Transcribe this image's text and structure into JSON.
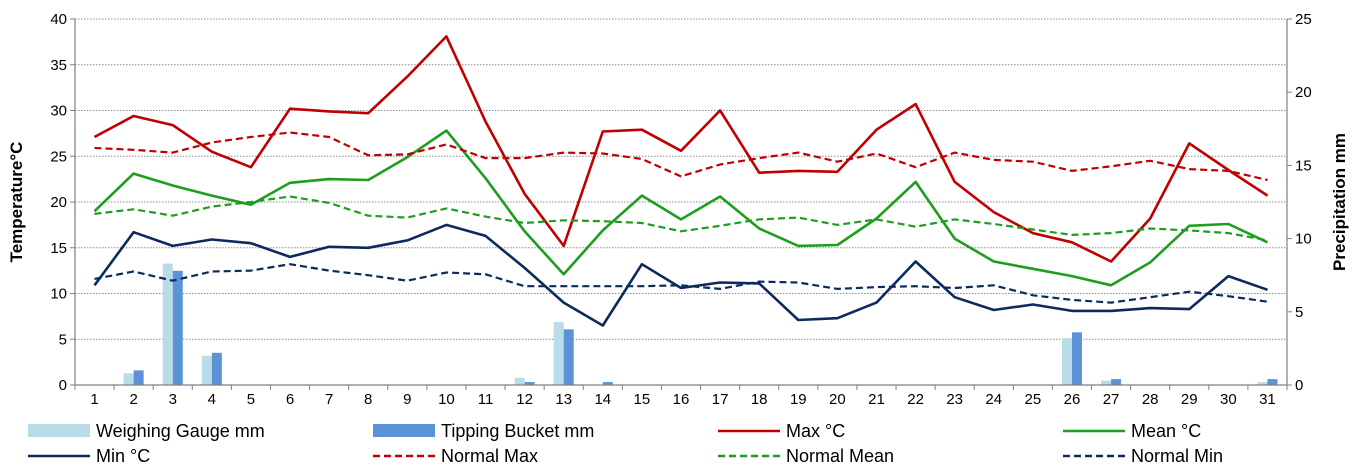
{
  "chart_data": {
    "type": "bar+line",
    "title": "",
    "x": [
      1,
      2,
      3,
      4,
      5,
      6,
      7,
      8,
      9,
      10,
      11,
      12,
      13,
      14,
      15,
      16,
      17,
      18,
      19,
      20,
      21,
      22,
      23,
      24,
      25,
      26,
      27,
      28,
      29,
      30,
      31
    ],
    "ylabel_left": "Temperature°C",
    "ylabel_right": "Precipitation mm",
    "ylim_left": [
      0,
      40
    ],
    "ylim_right": [
      0,
      25
    ],
    "yticks_left": [
      0,
      5,
      10,
      15,
      20,
      25,
      30,
      35,
      40
    ],
    "yticks_right": [
      0,
      5,
      10,
      15,
      20,
      25
    ],
    "grid": true,
    "legend_position": "bottom",
    "bars": [
      {
        "name": "Weighing Gauge mm",
        "color": "#b9dde8",
        "axis": "right",
        "values": [
          0,
          0.8,
          8.3,
          2.0,
          0,
          0,
          0,
          0,
          0,
          0,
          0,
          0.5,
          4.3,
          0,
          0,
          0,
          0,
          0,
          0,
          0,
          0,
          0,
          0,
          0,
          0,
          3.2,
          0.3,
          0,
          0,
          0,
          0.2
        ]
      },
      {
        "name": "Tipping Bucket mm",
        "color": "#5b93d6",
        "axis": "right",
        "values": [
          0,
          1.0,
          7.8,
          2.2,
          0,
          0,
          0,
          0,
          0,
          0,
          0,
          0.2,
          3.8,
          0.2,
          0,
          0,
          0,
          0,
          0,
          0,
          0,
          0,
          0,
          0,
          0,
          3.6,
          0.4,
          0,
          0,
          0,
          0.4
        ]
      }
    ],
    "series": [
      {
        "name": "Max °C",
        "color": "#c00000",
        "dash": "solid",
        "axis": "left",
        "values": [
          27.1,
          29.4,
          28.4,
          25.5,
          23.8,
          30.2,
          29.9,
          29.7,
          33.7,
          38.1,
          28.8,
          20.9,
          15.2,
          27.7,
          27.9,
          25.6,
          30.0,
          23.2,
          23.4,
          23.3,
          27.9,
          30.7,
          22.2,
          18.9,
          16.6,
          15.6,
          13.5,
          18.2,
          26.4,
          23.5,
          20.7
        ]
      },
      {
        "name": "Mean °C",
        "color": "#1e9e1e",
        "dash": "solid",
        "axis": "left",
        "values": [
          19.0,
          23.1,
          21.8,
          20.7,
          19.7,
          22.1,
          22.5,
          22.4,
          24.9,
          27.8,
          22.6,
          16.8,
          12.1,
          16.9,
          20.7,
          18.1,
          20.6,
          17.1,
          15.2,
          15.3,
          18.2,
          22.2,
          16.0,
          13.5,
          12.7,
          11.9,
          10.9,
          13.4,
          17.4,
          17.6,
          15.6
        ]
      },
      {
        "name": "Min °C",
        "color": "#0d2a5e",
        "dash": "solid",
        "axis": "left",
        "values": [
          10.9,
          16.7,
          15.2,
          15.9,
          15.5,
          14.0,
          15.1,
          15.0,
          15.8,
          17.5,
          16.3,
          12.8,
          9.0,
          6.5,
          13.2,
          10.6,
          11.2,
          11.1,
          7.1,
          7.3,
          9.0,
          13.5,
          9.6,
          8.2,
          8.8,
          8.1,
          8.1,
          8.4,
          8.3,
          11.9,
          10.4
        ]
      },
      {
        "name": "Normal Max",
        "color": "#c00000",
        "dash": "dashed",
        "axis": "left",
        "values": [
          25.9,
          25.7,
          25.4,
          26.5,
          27.1,
          27.6,
          27.1,
          25.1,
          25.2,
          26.3,
          24.8,
          24.8,
          25.4,
          25.3,
          24.7,
          22.8,
          24.1,
          24.8,
          25.4,
          24.4,
          25.3,
          23.8,
          25.4,
          24.6,
          24.4,
          23.4,
          23.9,
          24.5,
          23.6,
          23.4,
          22.4
        ]
      },
      {
        "name": "Normal Mean",
        "color": "#1e9e1e",
        "dash": "dashed",
        "axis": "left",
        "values": [
          18.7,
          19.2,
          18.5,
          19.5,
          20.0,
          20.6,
          19.9,
          18.5,
          18.3,
          19.3,
          18.4,
          17.7,
          18.0,
          17.9,
          17.7,
          16.8,
          17.4,
          18.1,
          18.3,
          17.5,
          18.1,
          17.3,
          18.1,
          17.6,
          17.0,
          16.4,
          16.6,
          17.1,
          16.9,
          16.6,
          15.8
        ]
      },
      {
        "name": "Normal Min",
        "color": "#0d2a5e",
        "dash": "dashed",
        "axis": "left",
        "values": [
          11.6,
          12.4,
          11.4,
          12.4,
          12.5,
          13.2,
          12.5,
          12.0,
          11.4,
          12.3,
          12.1,
          10.8,
          10.8,
          10.8,
          10.8,
          10.9,
          10.5,
          11.3,
          11.2,
          10.5,
          10.7,
          10.8,
          10.6,
          10.9,
          9.8,
          9.3,
          9.0,
          9.6,
          10.2,
          9.7,
          9.1
        ]
      }
    ]
  }
}
